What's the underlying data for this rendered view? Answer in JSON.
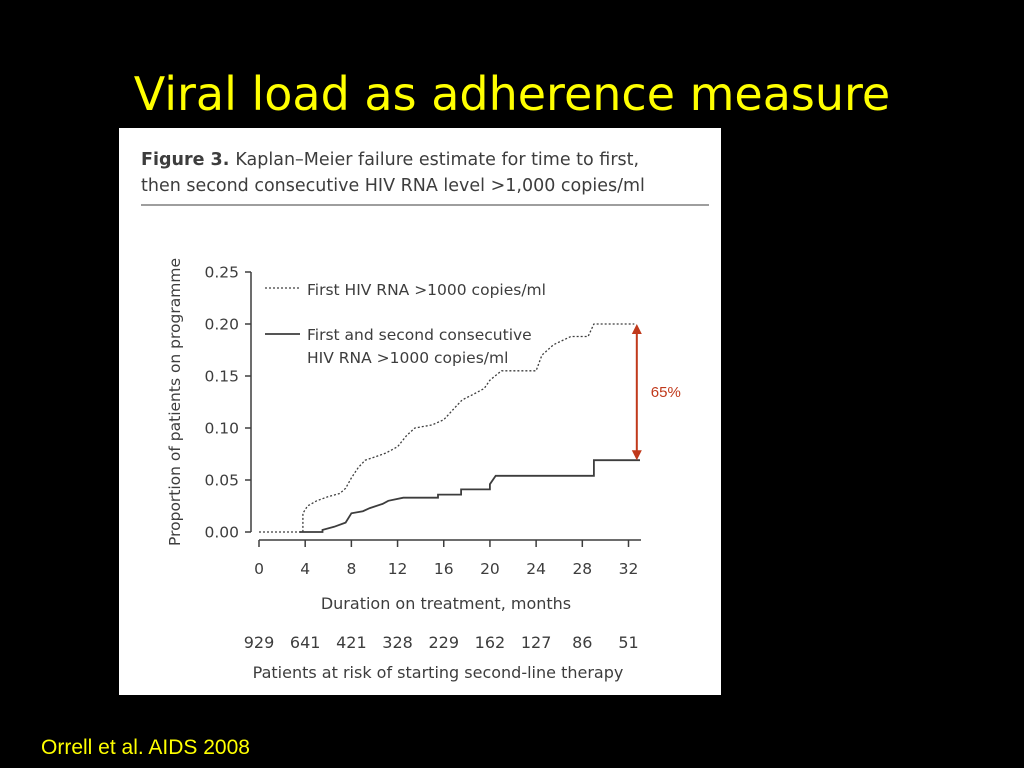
{
  "slide": {
    "title": "Viral load as adherence measure",
    "citation": "Orrell et al. AIDS 2008"
  },
  "figure": {
    "caption_bold": "Figure 3.",
    "caption_line1": "Kaplan–Meier failure estimate for time to first,",
    "caption_line2": "then second consecutive HIV RNA level >1,000 copies/ml"
  },
  "colors": {
    "title": "#ffff00",
    "background": "#000000",
    "curves": "#3d3d3d",
    "arrow": "#c0391b",
    "panel": "#ffffff"
  },
  "chart_data": {
    "type": "line",
    "title": "",
    "xlabel": "Duration on treatment, months",
    "ylabel": "Proportion of patients on programme",
    "xlim": [
      0,
      32
    ],
    "ylim": [
      0,
      0.25
    ],
    "x_ticks": [
      "0",
      "4",
      "8",
      "12",
      "16",
      "20",
      "24",
      "28",
      "32"
    ],
    "y_ticks": [
      "0.00",
      "0.05",
      "0.10",
      "0.15",
      "0.20",
      "0.25"
    ],
    "legend_position": "top-left",
    "series": [
      {
        "name": "First HIV RNA >1000 copies/ml",
        "style": "dotted",
        "points": [
          [
            0,
            0
          ],
          [
            3.8,
            0
          ],
          [
            3.8,
            0.018
          ],
          [
            4.2,
            0.025
          ],
          [
            5,
            0.03
          ],
          [
            6,
            0.034
          ],
          [
            7,
            0.037
          ],
          [
            7.5,
            0.042
          ],
          [
            8,
            0.052
          ],
          [
            8.6,
            0.062
          ],
          [
            9.2,
            0.069
          ],
          [
            10,
            0.072
          ],
          [
            11,
            0.076
          ],
          [
            12,
            0.082
          ],
          [
            12.8,
            0.093
          ],
          [
            13.5,
            0.1
          ],
          [
            15,
            0.103
          ],
          [
            16,
            0.108
          ],
          [
            17,
            0.12
          ],
          [
            17.6,
            0.127
          ],
          [
            18.5,
            0.132
          ],
          [
            19.5,
            0.138
          ],
          [
            20,
            0.146
          ],
          [
            21,
            0.155
          ],
          [
            24,
            0.155
          ],
          [
            24.5,
            0.17
          ],
          [
            25.5,
            0.18
          ],
          [
            27,
            0.188
          ],
          [
            28.5,
            0.188
          ],
          [
            29,
            0.2
          ],
          [
            32.5,
            0.2
          ]
        ]
      },
      {
        "name": "First and second consecutive HIV RNA >1000 copies/ml",
        "style": "solid",
        "points": [
          [
            3.5,
            0
          ],
          [
            5.5,
            0
          ],
          [
            5.5,
            0.002
          ],
          [
            6.5,
            0.005
          ],
          [
            7.5,
            0.009
          ],
          [
            8,
            0.018
          ],
          [
            9,
            0.02
          ],
          [
            9.6,
            0.023
          ],
          [
            10.7,
            0.027
          ],
          [
            11.2,
            0.03
          ],
          [
            12.5,
            0.033
          ],
          [
            15.5,
            0.033
          ],
          [
            15.5,
            0.036
          ],
          [
            17.5,
            0.036
          ],
          [
            17.5,
            0.041
          ],
          [
            20,
            0.041
          ],
          [
            20,
            0.046
          ],
          [
            20.5,
            0.054
          ],
          [
            29,
            0.054
          ],
          [
            29,
            0.069
          ],
          [
            33,
            0.069
          ]
        ]
      }
    ],
    "annotation": {
      "text": "65%",
      "x": 32.2,
      "y_from": 0.2,
      "y_to": 0.069,
      "color": "#c0391b"
    },
    "risk_table": {
      "values": [
        "929",
        "641",
        "421",
        "328",
        "229",
        "162",
        "127",
        "86",
        "51"
      ],
      "label": "Patients at risk of starting second-line therapy"
    }
  }
}
